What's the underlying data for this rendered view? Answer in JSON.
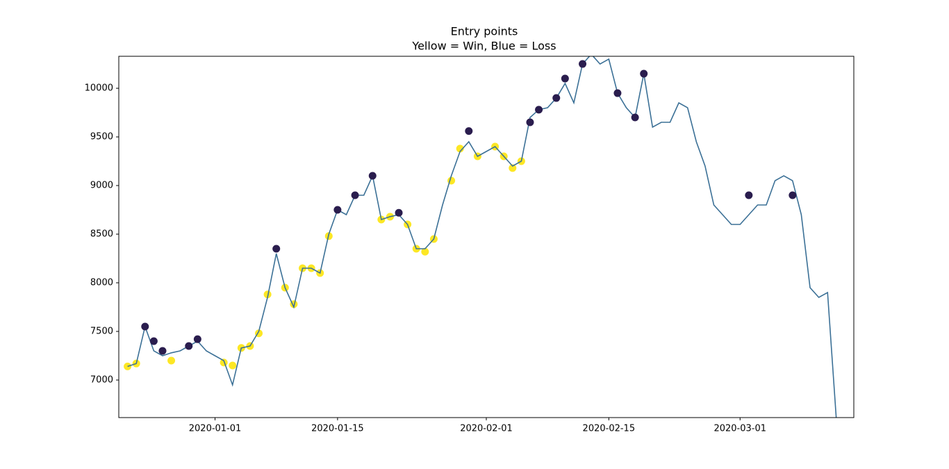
{
  "chart_data": {
    "type": "line",
    "title": "Entry points",
    "subtitle": "Yellow = Win, Blue = Loss",
    "x": [
      "2019-12-22",
      "2019-12-23",
      "2019-12-24",
      "2019-12-25",
      "2019-12-26",
      "2019-12-27",
      "2019-12-28",
      "2019-12-29",
      "2019-12-30",
      "2019-12-31",
      "2020-01-01",
      "2020-01-02",
      "2020-01-03",
      "2020-01-04",
      "2020-01-05",
      "2020-01-06",
      "2020-01-07",
      "2020-01-08",
      "2020-01-09",
      "2020-01-10",
      "2020-01-11",
      "2020-01-12",
      "2020-01-13",
      "2020-01-14",
      "2020-01-15",
      "2020-01-16",
      "2020-01-17",
      "2020-01-18",
      "2020-01-19",
      "2020-01-20",
      "2020-01-21",
      "2020-01-22",
      "2020-01-23",
      "2020-01-24",
      "2020-01-25",
      "2020-01-26",
      "2020-01-27",
      "2020-01-28",
      "2020-01-29",
      "2020-01-30",
      "2020-01-31",
      "2020-02-01",
      "2020-02-02",
      "2020-02-03",
      "2020-02-04",
      "2020-02-05",
      "2020-02-06",
      "2020-02-07",
      "2020-02-08",
      "2020-02-09",
      "2020-02-10",
      "2020-02-11",
      "2020-02-12",
      "2020-02-13",
      "2020-02-14",
      "2020-02-15",
      "2020-02-16",
      "2020-02-17",
      "2020-02-18",
      "2020-02-19",
      "2020-02-20",
      "2020-02-21",
      "2020-02-22",
      "2020-02-23",
      "2020-02-24",
      "2020-02-25",
      "2020-02-26",
      "2020-02-27",
      "2020-02-28",
      "2020-02-29",
      "2020-03-01",
      "2020-03-02",
      "2020-03-03",
      "2020-03-04",
      "2020-03-05",
      "2020-03-06",
      "2020-03-07",
      "2020-03-08",
      "2020-03-09",
      "2020-03-10",
      "2020-03-11",
      "2020-03-12"
    ],
    "series": [
      {
        "color": "#3b7096",
        "values": [
          7140,
          7170,
          7550,
          7300,
          7250,
          7280,
          7300,
          7350,
          7400,
          7300,
          7250,
          7200,
          6950,
          7330,
          7350,
          7500,
          7850,
          8300,
          7950,
          7750,
          8150,
          8150,
          8100,
          8500,
          8750,
          8700,
          8900,
          8900,
          9100,
          8650,
          8680,
          8700,
          8600,
          8350,
          8350,
          8450,
          8800,
          9100,
          9350,
          9450,
          9300,
          9350,
          9400,
          9300,
          9200,
          9250,
          9700,
          9780,
          9800,
          9900,
          10050,
          9850,
          10250,
          10350,
          10250,
          10300,
          9950,
          9800,
          9700,
          10150,
          9600,
          9650,
          9650,
          9850,
          9800,
          9450,
          9200,
          8800,
          8700,
          8600,
          8600,
          8700,
          8800,
          8800,
          9050,
          9100,
          9050,
          8700,
          7950,
          7850,
          7900,
          6600
        ]
      }
    ],
    "markers": [
      {
        "color": "#fde725",
        "x": [
          "2019-12-22",
          "2019-12-23",
          "2019-12-27",
          "2020-01-02",
          "2020-01-03",
          "2020-01-04",
          "2020-01-05",
          "2020-01-06",
          "2020-01-07",
          "2020-01-09",
          "2020-01-10",
          "2020-01-11",
          "2020-01-12",
          "2020-01-13",
          "2020-01-14",
          "2020-01-20",
          "2020-01-21",
          "2020-01-23",
          "2020-01-24",
          "2020-01-25",
          "2020-01-26",
          "2020-01-28",
          "2020-01-29",
          "2020-01-31",
          "2020-02-02",
          "2020-02-03",
          "2020-02-04",
          "2020-02-05"
        ],
        "values": [
          7140,
          7170,
          7200,
          7180,
          7150,
          7330,
          7350,
          7480,
          7880,
          7950,
          7780,
          8150,
          8150,
          8100,
          8480,
          8650,
          8680,
          8600,
          8350,
          8320,
          8450,
          9050,
          9380,
          9300,
          9400,
          9300,
          9180,
          9250
        ]
      },
      {
        "color": "#2a1d4e",
        "x": [
          "2019-12-24",
          "2019-12-25",
          "2019-12-26",
          "2019-12-29",
          "2019-12-30",
          "2020-01-08",
          "2020-01-15",
          "2020-01-17",
          "2020-01-19",
          "2020-01-22",
          "2020-01-30",
          "2020-02-06",
          "2020-02-07",
          "2020-02-09",
          "2020-02-10",
          "2020-02-12",
          "2020-02-16",
          "2020-02-18",
          "2020-02-19",
          "2020-03-02",
          "2020-03-07"
        ],
        "values": [
          7550,
          7400,
          7300,
          7350,
          7420,
          8350,
          8750,
          8900,
          9100,
          8720,
          9560,
          9650,
          9780,
          9900,
          10100,
          10250,
          9950,
          9700,
          10150,
          8900,
          8900
        ]
      }
    ],
    "xlim": [
      "2019-12-21",
      "2020-03-14"
    ],
    "xticks": [
      "2020-01-01",
      "2020-01-15",
      "2020-02-01",
      "2020-02-15",
      "2020-03-01"
    ],
    "ylim": [
      6614,
      10329
    ],
    "yticks": [
      7000,
      7500,
      8000,
      8500,
      9000,
      9500,
      10000
    ]
  }
}
